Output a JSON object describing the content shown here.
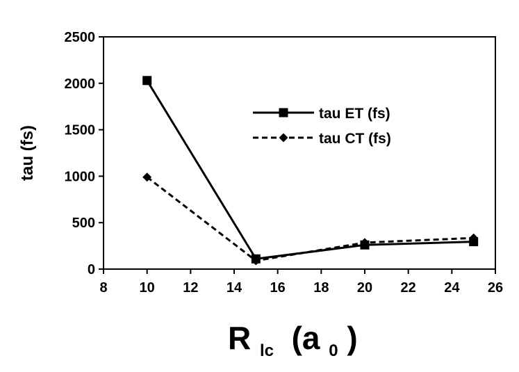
{
  "chart_data": {
    "type": "line",
    "title": "",
    "ylabel": "tau (fs)",
    "xlabel": {
      "main": "R",
      "sub": "lc",
      "unit_open": " (a",
      "unit_sub": "0",
      "unit_close": ")"
    },
    "xlim": [
      8,
      26
    ],
    "ylim": [
      0,
      2500
    ],
    "xticks": [
      8,
      10,
      12,
      14,
      16,
      18,
      20,
      22,
      24,
      26
    ],
    "yticks": [
      0,
      500,
      1000,
      1500,
      2000,
      2500
    ],
    "grid": false,
    "legend_position": "center-right",
    "series": [
      {
        "name": "tau ET (fs)",
        "marker": "square",
        "line": "solid",
        "color": "#000000",
        "x": [
          10,
          15,
          20,
          25
        ],
        "values": [
          2030,
          110,
          260,
          295
        ]
      },
      {
        "name": "tau CT (fs)",
        "marker": "diamond",
        "line": "dashed",
        "color": "#000000",
        "x": [
          10,
          15,
          20,
          25
        ],
        "values": [
          990,
          90,
          285,
          335
        ]
      }
    ]
  }
}
